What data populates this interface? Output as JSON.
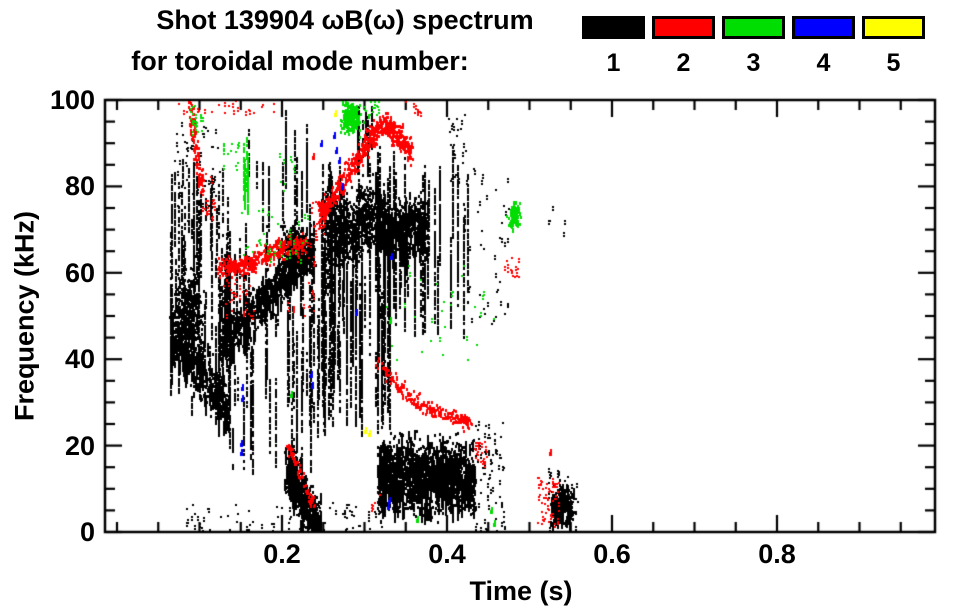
{
  "figure": {
    "title_line1": "Shot 139904 ωB(ω) spectrum",
    "title_line2": "for toroidal mode number:"
  },
  "legend": {
    "modes": [
      {
        "label": "1",
        "color": "#000000"
      },
      {
        "label": "2",
        "color": "#ff0000"
      },
      {
        "label": "3",
        "color": "#00dd00"
      },
      {
        "label": "4",
        "color": "#0000ff"
      },
      {
        "label": "5",
        "color": "#ffff00"
      }
    ]
  },
  "axes": {
    "x_label": "Time (s)",
    "y_label": "Frequency (kHz)",
    "x_ticks": [
      0.2,
      0.4,
      0.6,
      0.8
    ],
    "x_tick_labels": [
      "0.2",
      "0.4",
      "0.6",
      "0.8"
    ],
    "y_ticks": [
      0,
      20,
      40,
      60,
      80,
      100
    ],
    "y_tick_labels": [
      "0",
      "20",
      "40",
      "60",
      "80",
      "100"
    ],
    "x_range": [
      -0.015,
      0.99
    ],
    "y_range": [
      0,
      100
    ],
    "x_minor_step": 0.05,
    "y_minor_step": 5
  },
  "chart_data": {
    "type": "scatter",
    "title": "Shot 139904 ωB(ω) spectrum for toroidal mode number: 1 2 3 4 5",
    "xlabel": "Time (s)",
    "ylabel": "Frequency (kHz)",
    "xlim": [
      -0.015,
      0.99
    ],
    "ylim": [
      0,
      100
    ],
    "legend_position": "top-right",
    "grid": false,
    "mode_colors": {
      "1": "#000000",
      "2": "#ff0000",
      "3": "#00dd00",
      "4": "#0000ff",
      "5": "#ffff00"
    },
    "clusters": [
      {
        "m": 1,
        "type": "v",
        "t": [
          0.063,
          0.135
        ],
        "f": [
          25,
          88
        ],
        "n": 42,
        "seg": [
          4,
          26
        ]
      },
      {
        "m": 1,
        "type": "blob",
        "c": [
          0.085,
          50
        ],
        "r": [
          0.014,
          9
        ],
        "n": 520
      },
      {
        "m": 1,
        "type": "band",
        "pts": [
          [
            0.065,
            46
          ],
          [
            0.09,
            41
          ],
          [
            0.115,
            34
          ],
          [
            0.135,
            29
          ]
        ],
        "w": 9,
        "n": 420,
        "streak": 1
      },
      {
        "m": 1,
        "type": "box",
        "t": [
          0.068,
          0.125
        ],
        "f": [
          72,
          96
        ],
        "n": 60
      },
      {
        "m": 1,
        "type": "v",
        "t": [
          0.13,
          0.245
        ],
        "f": [
          12,
          74
        ],
        "n": 48,
        "seg": [
          4,
          22
        ]
      },
      {
        "m": 1,
        "type": "band",
        "pts": [
          [
            0.13,
            44
          ],
          [
            0.16,
            50
          ],
          [
            0.19,
            57
          ],
          [
            0.215,
            63
          ],
          [
            0.237,
            66
          ]
        ],
        "w": 7,
        "n": 850,
        "streak": 1
      },
      {
        "m": 1,
        "type": "blob",
        "c": [
          0.212,
          66
        ],
        "r": [
          0.012,
          5
        ],
        "n": 260
      },
      {
        "m": 1,
        "type": "v",
        "t": [
          0.158,
          0.235
        ],
        "f": [
          68,
          100
        ],
        "n": 13,
        "seg": [
          5,
          18
        ]
      },
      {
        "m": 1,
        "type": "band",
        "pts": [
          [
            0.205,
            15
          ],
          [
            0.217,
            11
          ],
          [
            0.23,
            6
          ],
          [
            0.245,
            2
          ]
        ],
        "w": 8,
        "n": 600,
        "streak": 1
      },
      {
        "m": 1,
        "type": "v",
        "t": [
          0.245,
          0.33
        ],
        "f": [
          22,
          86
        ],
        "n": 55,
        "seg": [
          6,
          36
        ]
      },
      {
        "m": 1,
        "type": "blob",
        "c": [
          0.272,
          70
        ],
        "r": [
          0.018,
          7
        ],
        "n": 500
      },
      {
        "m": 1,
        "type": "blob",
        "c": [
          0.302,
          73
        ],
        "r": [
          0.011,
          7
        ],
        "n": 280
      },
      {
        "m": 1,
        "type": "v",
        "t": [
          0.288,
          0.312
        ],
        "f": [
          82,
          101
        ],
        "n": 9,
        "seg": [
          4,
          14
        ]
      },
      {
        "m": 1,
        "type": "band",
        "pts": [
          [
            0.315,
            73
          ],
          [
            0.335,
            69
          ],
          [
            0.355,
            72
          ],
          [
            0.375,
            70
          ]
        ],
        "w": 8,
        "n": 520,
        "streak": 1
      },
      {
        "m": 1,
        "type": "v",
        "t": [
          0.312,
          0.425
        ],
        "f": [
          44,
          90
        ],
        "n": 38,
        "seg": [
          5,
          26
        ]
      },
      {
        "m": 1,
        "type": "box",
        "t": [
          0.4,
          0.425
        ],
        "f": [
          80,
          97
        ],
        "n": 28
      },
      {
        "m": 1,
        "type": "box",
        "t": [
          0.425,
          0.475
        ],
        "f": [
          45,
          85
        ],
        "n": 42
      },
      {
        "m": 1,
        "type": "band",
        "pts": [
          [
            0.316,
            13
          ],
          [
            0.34,
            14
          ],
          [
            0.37,
            13
          ],
          [
            0.4,
            14
          ],
          [
            0.432,
            12
          ]
        ],
        "w": 11,
        "n": 2600,
        "streak": 1
      },
      {
        "m": 1,
        "type": "box",
        "t": [
          0.432,
          0.468
        ],
        "f": [
          6,
          26
        ],
        "n": 65
      },
      {
        "m": 1,
        "type": "band",
        "pts": [
          [
            0.527,
            5
          ],
          [
            0.538,
            8
          ],
          [
            0.551,
            6
          ]
        ],
        "w": 5,
        "n": 210,
        "streak": 1
      },
      {
        "m": 1,
        "type": "box",
        "t": [
          0.522,
          0.558
        ],
        "f": [
          1,
          15
        ],
        "n": 55
      },
      {
        "m": 1,
        "type": "box",
        "t": [
          0.08,
          0.32
        ],
        "f": [
          0,
          7
        ],
        "n": 85
      },
      {
        "m": 1,
        "type": "box",
        "t": [
          0.42,
          0.47
        ],
        "f": [
          0,
          6
        ],
        "n": 20
      },
      {
        "m": 1,
        "type": "box",
        "t": [
          0.52,
          0.55
        ],
        "f": [
          68,
          78
        ],
        "n": 5
      },
      {
        "m": 2,
        "type": "band",
        "pts": [
          [
            0.088,
            99
          ],
          [
            0.093,
            91
          ],
          [
            0.098,
            85
          ],
          [
            0.103,
            79
          ]
        ],
        "w": 3,
        "n": 110
      },
      {
        "m": 2,
        "type": "box",
        "t": [
          0.102,
          0.118
        ],
        "f": [
          72,
          83
        ],
        "n": 24
      },
      {
        "m": 2,
        "type": "box",
        "t": [
          0.072,
          0.2
        ],
        "f": [
          97,
          101
        ],
        "n": 26
      },
      {
        "m": 2,
        "type": "band",
        "pts": [
          [
            0.122,
            61
          ],
          [
            0.15,
            62
          ],
          [
            0.175,
            64
          ],
          [
            0.2,
            66
          ],
          [
            0.226,
            67
          ]
        ],
        "w": 3.5,
        "n": 400
      },
      {
        "m": 2,
        "type": "box",
        "t": [
          0.125,
          0.17
        ],
        "f": [
          50,
          59
        ],
        "n": 28
      },
      {
        "m": 2,
        "type": "box",
        "t": [
          0.205,
          0.24
        ],
        "f": [
          50,
          68
        ],
        "n": 22
      },
      {
        "m": 2,
        "type": "band",
        "pts": [
          [
            0.205,
            21
          ],
          [
            0.22,
            14
          ],
          [
            0.237,
            7
          ]
        ],
        "w": 2.5,
        "n": 65
      },
      {
        "m": 2,
        "type": "band",
        "pts": [
          [
            0.245,
            74
          ],
          [
            0.265,
            79
          ],
          [
            0.285,
            85
          ],
          [
            0.305,
            91
          ],
          [
            0.322,
            95
          ],
          [
            0.34,
            92
          ],
          [
            0.356,
            88
          ]
        ],
        "w": 4,
        "n": 640
      },
      {
        "m": 2,
        "type": "box",
        "t": [
          0.235,
          0.252
        ],
        "f": [
          68,
          77
        ],
        "n": 24
      },
      {
        "m": 2,
        "type": "box",
        "t": [
          0.348,
          0.372
        ],
        "f": [
          97,
          101
        ],
        "n": 10
      },
      {
        "m": 2,
        "type": "band",
        "pts": [
          [
            0.315,
            40
          ],
          [
            0.34,
            34
          ],
          [
            0.365,
            30
          ],
          [
            0.39,
            28
          ],
          [
            0.415,
            26.5
          ],
          [
            0.428,
            25
          ]
        ],
        "w": 2.5,
        "n": 230
      },
      {
        "m": 2,
        "type": "box",
        "t": [
          0.432,
          0.448
        ],
        "f": [
          16,
          21
        ],
        "n": 24
      },
      {
        "m": 2,
        "type": "box",
        "t": [
          0.305,
          0.318
        ],
        "f": [
          5,
          9
        ],
        "n": 6
      },
      {
        "m": 2,
        "type": "box",
        "t": [
          0.468,
          0.487
        ],
        "f": [
          59,
          64
        ],
        "n": 16
      },
      {
        "m": 2,
        "type": "box",
        "t": [
          0.508,
          0.535
        ],
        "f": [
          2,
          13
        ],
        "n": 50
      },
      {
        "m": 2,
        "type": "pts",
        "pts": [
          [
            0.524,
            18.5
          ],
          [
            0.236,
            87
          ]
        ]
      },
      {
        "m": 3,
        "type": "box",
        "t": [
          0.088,
          0.103
        ],
        "f": [
          92,
          99
        ],
        "n": 24
      },
      {
        "m": 3,
        "type": "v",
        "t": [
          0.148,
          0.159
        ],
        "f": [
          74,
          92
        ],
        "n": 4,
        "seg": [
          6,
          14
        ]
      },
      {
        "m": 3,
        "type": "box",
        "t": [
          0.128,
          0.148
        ],
        "f": [
          83,
          92
        ],
        "n": 13
      },
      {
        "m": 3,
        "type": "box",
        "t": [
          0.15,
          0.232
        ],
        "f": [
          63,
          75
        ],
        "n": 36
      },
      {
        "m": 3,
        "type": "box",
        "t": [
          0.193,
          0.217
        ],
        "f": [
          79,
          90
        ],
        "n": 11
      },
      {
        "m": 3,
        "type": "blob",
        "c": [
          0.283,
          96
        ],
        "r": [
          0.01,
          3
        ],
        "n": 210
      },
      {
        "m": 3,
        "type": "box",
        "t": [
          0.298,
          0.317
        ],
        "f": [
          95,
          101
        ],
        "n": 16
      },
      {
        "m": 3,
        "type": "box",
        "t": [
          0.325,
          0.465
        ],
        "f": [
          40,
          62
        ],
        "n": 30
      },
      {
        "m": 3,
        "type": "blob",
        "c": [
          0.481,
          73.5
        ],
        "r": [
          0.006,
          2.6
        ],
        "n": 105
      },
      {
        "m": 3,
        "type": "pts",
        "pts": [
          [
            0.21,
            32
          ],
          [
            0.452,
            5
          ],
          [
            0.456,
            2
          ],
          [
            0.33,
            49
          ],
          [
            0.362,
            3
          ]
        ]
      },
      {
        "m": 4,
        "type": "pts",
        "pts": [
          [
            0.149,
            18.5
          ],
          [
            0.149,
            20.5
          ],
          [
            0.15,
            31
          ],
          [
            0.15,
            33.5
          ],
          [
            0.234,
            36.5
          ],
          [
            0.235,
            34
          ],
          [
            0.246,
            90
          ],
          [
            0.262,
            92
          ],
          [
            0.264,
            88.5
          ],
          [
            0.268,
            86
          ],
          [
            0.272,
            80
          ],
          [
            0.288,
            51
          ],
          [
            0.327,
            6
          ],
          [
            0.328,
            7.5
          ],
          [
            0.331,
            64
          ]
        ]
      },
      {
        "m": 5,
        "type": "pts",
        "pts": [
          [
            0.263,
            97
          ],
          [
            0.299,
            23.5
          ],
          [
            0.304,
            23
          ]
        ]
      }
    ]
  }
}
